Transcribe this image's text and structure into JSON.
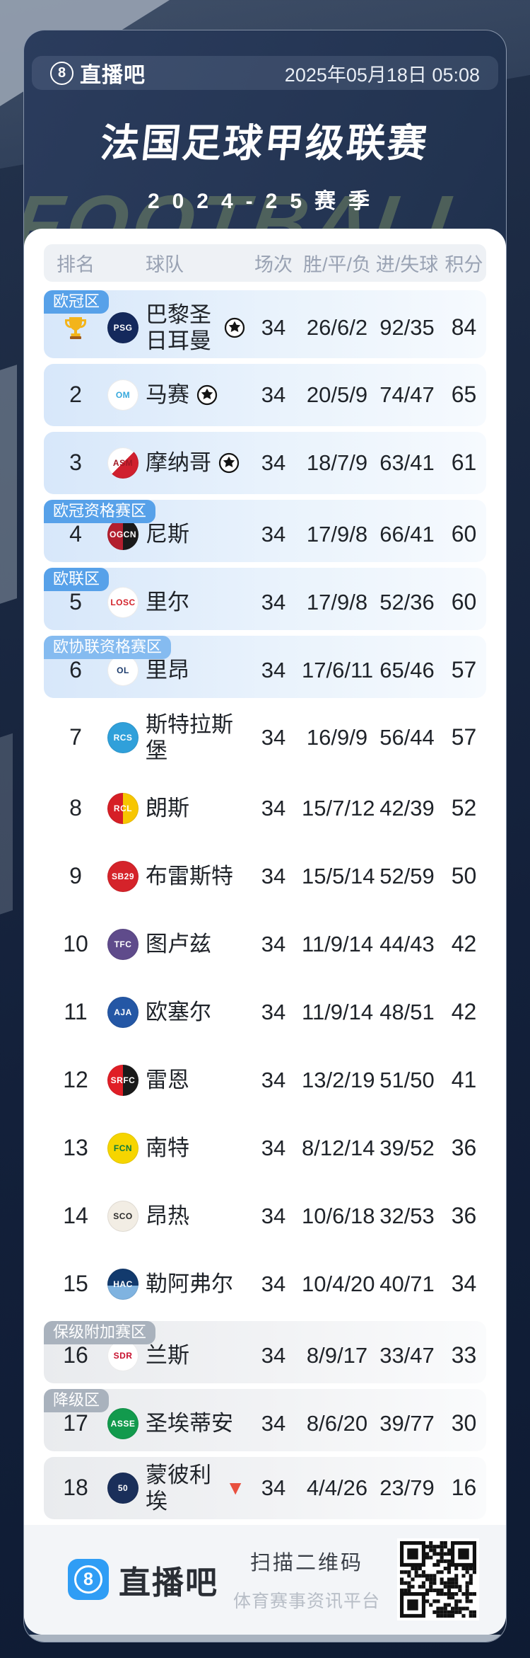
{
  "header": {
    "logo_icon": "8",
    "logo_text": "直播吧",
    "date": "2025年05月18日 05:08"
  },
  "title": "法国足球甲级联赛",
  "season": "2024-25赛季",
  "watermark": "FOOTBALL",
  "zone_colors": {
    "blue": "#57a1e9",
    "lightblue": "#85bbf0",
    "gray": "#a9b2bd"
  },
  "table": {
    "columns": [
      "排名",
      "球队",
      "场次",
      "胜/平/负",
      "进/失球",
      "积分"
    ],
    "rows": [
      {
        "rank": "",
        "rank_icon": "trophy-icon",
        "zone": "欧冠区",
        "zone_color": "blue",
        "tint": "eu",
        "team": "巴黎圣日耳曼",
        "ucl_icon": true,
        "played": "34",
        "wdl": "26/6/2",
        "goals": "92/35",
        "points": "84",
        "logo": {
          "abbr": "PSG",
          "bg": "#14295c",
          "fg": "#ffffff"
        }
      },
      {
        "rank": "2",
        "tint": "eu",
        "team": "马赛",
        "ucl_icon": true,
        "played": "34",
        "wdl": "20/5/9",
        "goals": "74/47",
        "points": "65",
        "logo": {
          "abbr": "OM",
          "bg": "#ffffff",
          "fg": "#36a8dc"
        }
      },
      {
        "rank": "3",
        "tint": "eu",
        "team": "摩纳哥",
        "ucl_icon": true,
        "played": "34",
        "wdl": "18/7/9",
        "goals": "63/41",
        "points": "61",
        "logo": {
          "abbr": "ASM",
          "bg": "linear-gradient(135deg,#ffffff 50%,#d0202e 50%)",
          "fg": "#a01824"
        }
      },
      {
        "rank": "4",
        "zone": "欧冠资格赛区",
        "zone_color": "blue",
        "tint": "eu",
        "team": "尼斯",
        "played": "34",
        "wdl": "17/9/8",
        "goals": "66/41",
        "points": "60",
        "logo": {
          "abbr": "OGCN",
          "bg": "linear-gradient(90deg,#b31f2e 50%,#1a1a1a 50%)",
          "fg": "#ffffff"
        }
      },
      {
        "rank": "5",
        "zone": "欧联区",
        "zone_color": "blue",
        "tint": "eu",
        "team": "里尔",
        "played": "34",
        "wdl": "17/9/8",
        "goals": "52/36",
        "points": "60",
        "logo": {
          "abbr": "LOSC",
          "bg": "#ffffff",
          "fg": "#d3242c"
        }
      },
      {
        "rank": "6",
        "zone": "欧协联资格赛区",
        "zone_color": "lightblue",
        "tint": "eu",
        "team": "里昂",
        "played": "34",
        "wdl": "17/6/11",
        "goals": "65/46",
        "points": "57",
        "logo": {
          "abbr": "OL",
          "bg": "#ffffff",
          "fg": "#1b3a6b"
        }
      },
      {
        "rank": "7",
        "tint": "none",
        "team": "斯特拉斯堡",
        "played": "34",
        "wdl": "16/9/9",
        "goals": "56/44",
        "points": "57",
        "logo": {
          "abbr": "RCS",
          "bg": "#30a0da",
          "fg": "#ffffff"
        }
      },
      {
        "rank": "8",
        "tint": "none",
        "team": "朗斯",
        "played": "34",
        "wdl": "15/7/12",
        "goals": "42/39",
        "points": "52",
        "logo": {
          "abbr": "RCL",
          "bg": "linear-gradient(90deg,#d61f26 50%,#f7c600 50%)",
          "fg": "#ffffff"
        }
      },
      {
        "rank": "9",
        "tint": "none",
        "team": "布雷斯特",
        "played": "34",
        "wdl": "15/5/14",
        "goals": "52/59",
        "points": "50",
        "logo": {
          "abbr": "SB29",
          "bg": "#d5232a",
          "fg": "#ffffff"
        }
      },
      {
        "rank": "10",
        "tint": "none",
        "team": "图卢兹",
        "played": "34",
        "wdl": "11/9/14",
        "goals": "44/43",
        "points": "42",
        "logo": {
          "abbr": "TFC",
          "bg": "#5f4b8b",
          "fg": "#ffffff"
        }
      },
      {
        "rank": "11",
        "tint": "none",
        "team": "欧塞尔",
        "played": "34",
        "wdl": "11/9/14",
        "goals": "48/51",
        "points": "42",
        "logo": {
          "abbr": "AJA",
          "bg": "#2457a5",
          "fg": "#ffffff"
        }
      },
      {
        "rank": "12",
        "tint": "none",
        "team": "雷恩",
        "played": "34",
        "wdl": "13/2/19",
        "goals": "51/50",
        "points": "41",
        "logo": {
          "abbr": "SRFC",
          "bg": "linear-gradient(90deg,#e01e26 50%,#1a1a1a 50%)",
          "fg": "#ffffff"
        }
      },
      {
        "rank": "13",
        "tint": "none",
        "team": "南特",
        "played": "34",
        "wdl": "8/12/14",
        "goals": "39/52",
        "points": "36",
        "logo": {
          "abbr": "FCN",
          "bg": "#f6d500",
          "fg": "#0d7a3f"
        }
      },
      {
        "rank": "14",
        "tint": "none",
        "team": "昂热",
        "played": "34",
        "wdl": "10/6/18",
        "goals": "32/53",
        "points": "36",
        "logo": {
          "abbr": "SCO",
          "bg": "#f2ede4",
          "fg": "#2b2b2b"
        }
      },
      {
        "rank": "15",
        "tint": "none",
        "team": "勒阿弗尔",
        "played": "34",
        "wdl": "10/4/20",
        "goals": "40/71",
        "points": "34",
        "logo": {
          "abbr": "HAC",
          "bg": "linear-gradient(180deg,#123a6d 55%,#7fb3e0 55%)",
          "fg": "#ffffff"
        }
      },
      {
        "rank": "16",
        "zone": "保级附加赛区",
        "zone_color": "gray",
        "tint": "gray",
        "team": "兰斯",
        "played": "34",
        "wdl": "8/9/17",
        "goals": "33/47",
        "points": "33",
        "logo": {
          "abbr": "SDR",
          "bg": "#ffffff",
          "fg": "#c8102e"
        }
      },
      {
        "rank": "17",
        "zone": "降级区",
        "zone_color": "gray",
        "tint": "gray",
        "team": "圣埃蒂安",
        "played": "34",
        "wdl": "8/6/20",
        "goals": "39/77",
        "points": "30",
        "logo": {
          "abbr": "ASSE",
          "bg": "#129a4d",
          "fg": "#ffffff"
        }
      },
      {
        "rank": "18",
        "tint": "gray",
        "team": "蒙彼利埃",
        "releg_icon": true,
        "played": "34",
        "wdl": "4/4/26",
        "goals": "23/79",
        "points": "16",
        "logo": {
          "abbr": "50",
          "bg": "#1a2f5a",
          "fg": "#ffffff"
        }
      }
    ]
  },
  "footer": {
    "logo_icon": "8",
    "logo_text": "直播吧",
    "scan_label": "扫描二维码",
    "platform_label": "体育赛事资讯平台"
  }
}
